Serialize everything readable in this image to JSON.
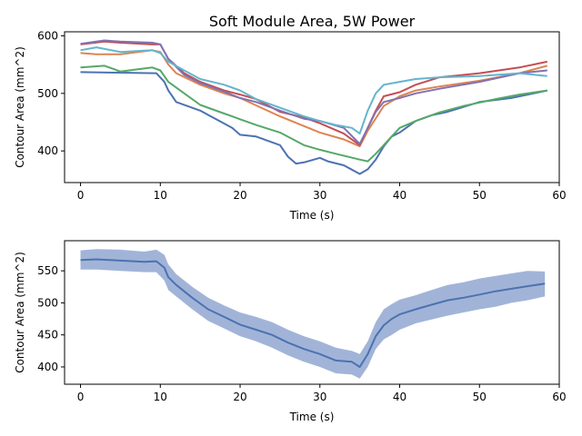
{
  "figure": {
    "title": "Soft Module Area, 5W Power"
  },
  "chart_data": [
    {
      "type": "line",
      "title": "Soft Module Area, 5W Power",
      "xlabel": "Time (s)",
      "ylabel": "Contour Area (mm^2)",
      "xlim": [
        -2,
        60
      ],
      "ylim": [
        345,
        607
      ],
      "xticks": [
        0,
        10,
        20,
        30,
        40,
        50,
        60
      ],
      "yticks": [
        400,
        500,
        600
      ],
      "grid": false,
      "series": [
        {
          "color": "#4c72b0",
          "x": [
            0,
            5,
            9.5,
            10.5,
            11,
            12,
            15,
            17,
            19,
            20,
            22,
            25,
            26,
            27,
            28,
            30,
            31,
            33,
            35,
            36,
            37,
            38,
            39,
            40,
            42,
            44,
            46,
            50,
            54,
            58.5
          ],
          "values": [
            537,
            536,
            535,
            520,
            505,
            485,
            470,
            455,
            440,
            428,
            425,
            410,
            390,
            378,
            380,
            388,
            382,
            375,
            360,
            368,
            385,
            408,
            425,
            432,
            452,
            462,
            468,
            485,
            492,
            505
          ]
        },
        {
          "color": "#dd8452",
          "x": [
            0,
            2,
            5,
            9,
            10,
            11,
            12,
            15,
            18,
            20,
            25,
            30,
            33,
            35,
            36,
            38,
            40,
            42,
            45,
            50,
            55,
            58.5
          ],
          "values": [
            570,
            568,
            568,
            575,
            572,
            550,
            535,
            515,
            500,
            492,
            460,
            432,
            420,
            408,
            435,
            478,
            495,
            505,
            512,
            522,
            535,
            548
          ]
        },
        {
          "color": "#55a868",
          "x": [
            0,
            3,
            5,
            9,
            10,
            11,
            13,
            15,
            18,
            19,
            20,
            22,
            25,
            28,
            30,
            32,
            35,
            36,
            37,
            39,
            40,
            42,
            45,
            48,
            52,
            55,
            58.5
          ],
          "values": [
            545,
            548,
            538,
            545,
            540,
            520,
            500,
            480,
            465,
            460,
            455,
            445,
            432,
            410,
            402,
            395,
            385,
            382,
            395,
            425,
            440,
            452,
            467,
            478,
            490,
            498,
            505
          ]
        },
        {
          "color": "#c44e52",
          "x": [
            0,
            3,
            5,
            9,
            10,
            11,
            13,
            15,
            18,
            20,
            22,
            25,
            28,
            30,
            33,
            35,
            36,
            37,
            38,
            40,
            42,
            45,
            50,
            55,
            58.5
          ],
          "values": [
            585,
            590,
            588,
            585,
            585,
            560,
            535,
            520,
            505,
            498,
            490,
            468,
            458,
            448,
            430,
            410,
            440,
            470,
            495,
            502,
            515,
            528,
            535,
            545,
            555
          ]
        },
        {
          "color": "#8172b3",
          "x": [
            0,
            3,
            5,
            9,
            10,
            11,
            13,
            15,
            18,
            20,
            22,
            25,
            28,
            30,
            33,
            35,
            36,
            37,
            38,
            40,
            42,
            45,
            50,
            55,
            58.5
          ],
          "values": [
            586,
            592,
            590,
            588,
            585,
            560,
            532,
            518,
            503,
            492,
            485,
            470,
            456,
            452,
            440,
            412,
            440,
            468,
            485,
            492,
            500,
            508,
            520,
            535,
            540
          ]
        },
        {
          "color": "#64b5cd",
          "x": [
            0,
            2,
            5,
            9,
            10,
            11,
            13,
            15,
            18,
            20,
            22,
            25,
            28,
            30,
            32,
            34,
            35,
            36,
            37,
            38,
            40,
            42,
            45,
            50,
            55,
            58.5
          ],
          "values": [
            575,
            580,
            572,
            575,
            570,
            555,
            540,
            525,
            515,
            505,
            490,
            475,
            460,
            452,
            445,
            440,
            430,
            470,
            500,
            515,
            520,
            525,
            528,
            530,
            535,
            530
          ]
        }
      ]
    },
    {
      "type": "area",
      "xlabel": "Time (s)",
      "ylabel": "Contour Area (mm^2)",
      "xlim": [
        -2,
        60
      ],
      "ylim": [
        373,
        597
      ],
      "xticks": [
        0,
        10,
        20,
        30,
        40,
        50,
        60
      ],
      "yticks": [
        400,
        450,
        500,
        550
      ],
      "grid": false,
      "series": [
        {
          "color": "#4c72b0",
          "band_color": "#a1b4d8",
          "x": [
            0,
            2,
            5,
            8,
            9.5,
            10.5,
            11,
            12,
            14,
            16,
            18,
            20,
            22,
            24,
            26,
            28,
            30,
            32,
            34,
            35,
            36,
            37,
            38,
            39,
            40,
            42,
            44,
            46,
            48,
            50,
            52,
            54,
            56,
            58.2
          ],
          "mean": [
            567,
            568,
            566,
            564,
            565,
            555,
            540,
            528,
            508,
            490,
            478,
            466,
            458,
            450,
            438,
            428,
            420,
            410,
            408,
            400,
            420,
            448,
            465,
            475,
            482,
            490,
            497,
            504,
            508,
            513,
            518,
            522,
            526,
            530
          ],
          "upper": [
            582,
            584,
            583,
            580,
            583,
            575,
            560,
            545,
            525,
            508,
            496,
            485,
            478,
            470,
            458,
            448,
            440,
            430,
            425,
            420,
            440,
            470,
            490,
            498,
            505,
            512,
            520,
            528,
            532,
            538,
            542,
            546,
            550,
            549
          ],
          "lower": [
            552,
            552,
            550,
            548,
            548,
            535,
            520,
            510,
            490,
            472,
            460,
            448,
            440,
            430,
            418,
            408,
            400,
            390,
            388,
            382,
            400,
            428,
            443,
            450,
            458,
            468,
            474,
            480,
            485,
            490,
            494,
            500,
            504,
            510
          ]
        }
      ]
    }
  ]
}
